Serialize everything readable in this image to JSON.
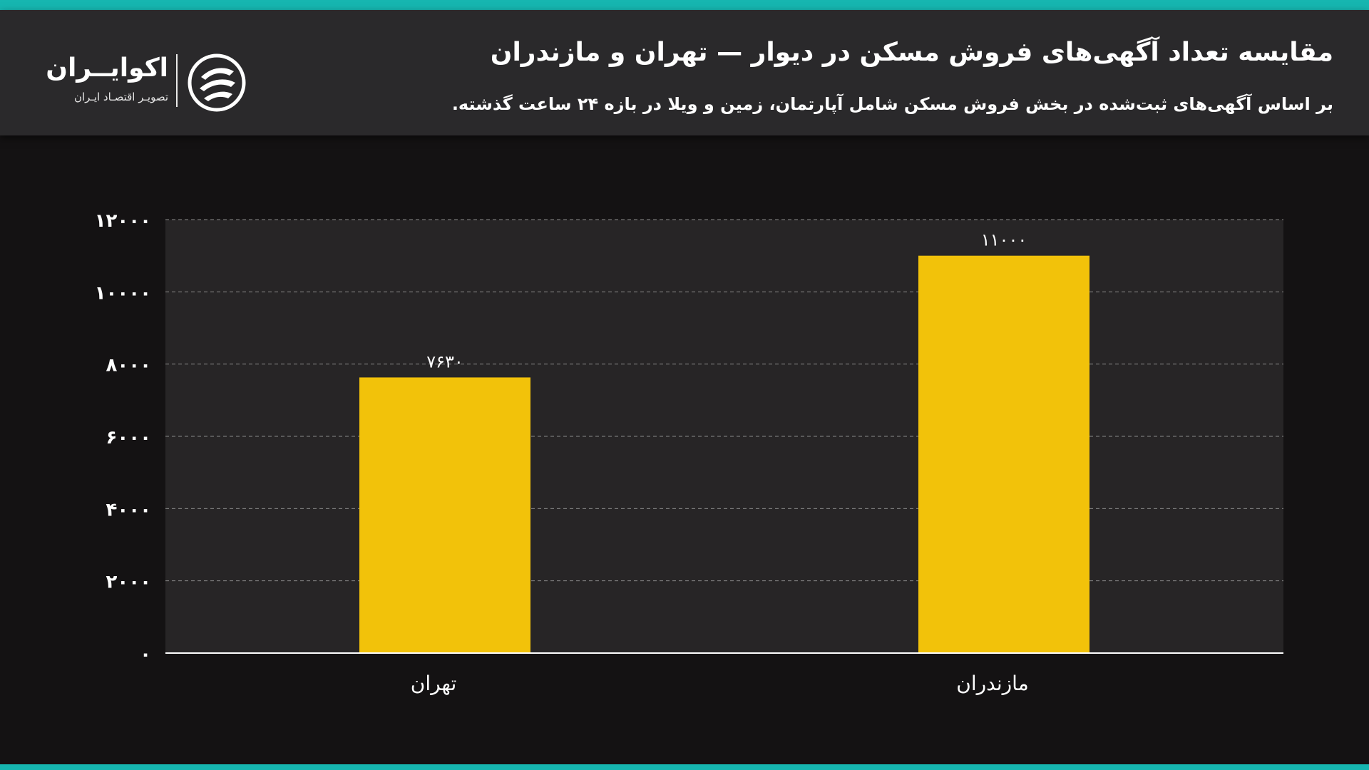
{
  "header": {
    "title": "مقایسه تعداد آگهی‌های فروش مسکن در دیوار — تهران و مازندران",
    "subtitle": "بر اساس آگهی‌های ثبت‌شده در بخش فروش مسکن شامل آپارتمان، زمین و ویلا در بازه ۲۴ ساعت گذشته."
  },
  "logo": {
    "name": "اکوایــران",
    "tagline": "تصویـر اقتصـاد ایـران",
    "icon": "ecoiran-swirl-icon"
  },
  "colors": {
    "accent_strip": "#16b6b0",
    "header_bg": "#2a292b",
    "page_bg": "#141213",
    "plot_bg": "#272526",
    "bar": "#f2c20a",
    "grid": "#8a8a8a"
  },
  "chart_data": {
    "type": "bar",
    "categories": [
      "تهران",
      "مازندران"
    ],
    "values": [
      7630,
      11000
    ],
    "value_labels": [
      "۷۶۳۰",
      "۱۱۰۰۰"
    ],
    "ylim": [
      0,
      12000
    ],
    "yticks": [
      0,
      2000,
      4000,
      6000,
      8000,
      10000,
      12000
    ],
    "ytick_labels": [
      "۰",
      "۲۰۰۰",
      "۴۰۰۰",
      "۶۰۰۰",
      "۸۰۰۰",
      "۱۰۰۰۰",
      "۱۲۰۰۰"
    ],
    "title": "",
    "xlabel": "",
    "ylabel": "",
    "grid": "horizontal dashed",
    "legend": "none"
  }
}
